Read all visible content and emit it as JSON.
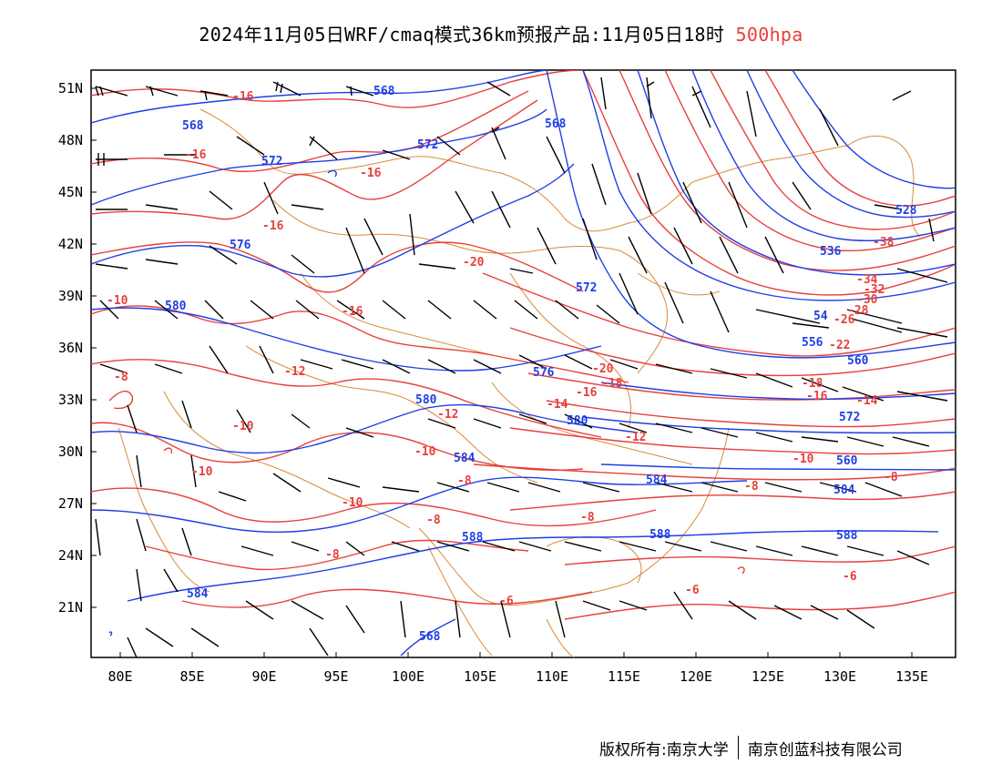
{
  "header": {
    "title": "2024年11月05日WRF/cmaq模式36km预报产品:11月05日18时",
    "level": "500hpa"
  },
  "axes": {
    "lat_labels": [
      "51N",
      "48N",
      "45N",
      "42N",
      "39N",
      "36N",
      "33N",
      "30N",
      "27N",
      "24N",
      "21N"
    ],
    "lon_labels": [
      "80E",
      "85E",
      "90E",
      "95E",
      "100E",
      "105E",
      "110E",
      "115E",
      "120E",
      "125E",
      "130E",
      "135E"
    ]
  },
  "contours": {
    "height_labels": [
      "568",
      "568",
      "572",
      "572",
      "576",
      "580",
      "580",
      "580",
      "584",
      "584",
      "584",
      "588",
      "588",
      "588",
      "568",
      "572",
      "576",
      "560",
      "560",
      "556",
      "54",
      "536",
      "528",
      "568",
      "584",
      "572"
    ],
    "temperature_labels": [
      "-16",
      "-16",
      "-16",
      "-16",
      "-20",
      "-12",
      "-12",
      "-10",
      "-10",
      "-10",
      "-10",
      "-10",
      "-8",
      "-8",
      "-8",
      "-8",
      "-8",
      "-6",
      "-6",
      "-6",
      "-14",
      "-16",
      "-18",
      "-20",
      "-22",
      "-26",
      "-28",
      "-30",
      "-32",
      "-34",
      "-38",
      "-18",
      "-16",
      "-14",
      "-12",
      "-10",
      "-8",
      "-8",
      "-16"
    ]
  },
  "colors": {
    "height": "#1f3fe6",
    "temperature": "#e8403c",
    "border": "#d98a3a",
    "barb": "#000000",
    "level": "#e8403c"
  },
  "footer": {
    "copyright": "版权所有:南京大学",
    "company": "南京创蓝科技有限公司"
  }
}
